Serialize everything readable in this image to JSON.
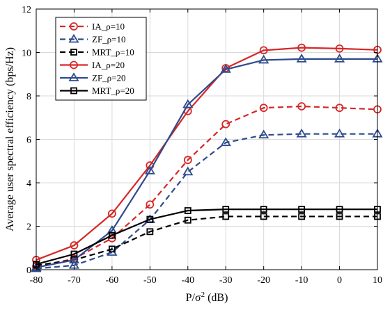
{
  "chart_data": {
    "type": "line",
    "xlabel": "P/σ² (dB)",
    "xlabel_base": "P/σ",
    "xlabel_sup": "2",
    "xlabel_tail": " (dB)",
    "ylabel": "Average user spectral efficiency (bps/Hz)",
    "x": [
      -80,
      -70,
      -60,
      -50,
      -40,
      -30,
      -20,
      -10,
      0,
      10
    ],
    "xlim": [
      -80,
      10
    ],
    "ylim": [
      0,
      12
    ],
    "x_ticks": [
      "-80",
      "-70",
      "-60",
      "-50",
      "-40",
      "-30",
      "-20",
      "-10",
      "0",
      "10"
    ],
    "y_ticks": [
      "0",
      "2",
      "4",
      "6",
      "8",
      "10",
      "12"
    ],
    "grid": true,
    "legend_position": "top-left",
    "series": [
      {
        "name": "IA_ρ=10",
        "color": "#d62728",
        "dash": "dashed",
        "marker": "circle",
        "values": [
          0.15,
          0.5,
          1.45,
          3.0,
          5.05,
          6.7,
          7.45,
          7.52,
          7.45,
          7.38
        ]
      },
      {
        "name": "ZF_ρ=10",
        "color": "#2e4b8e",
        "dash": "dashed",
        "marker": "triangle",
        "values": [
          0.05,
          0.2,
          0.8,
          2.3,
          4.5,
          5.85,
          6.2,
          6.25,
          6.25,
          6.25
        ]
      },
      {
        "name": "MRT_ρ=10",
        "color": "#000000",
        "dash": "dashed",
        "marker": "square",
        "values": [
          0.2,
          0.45,
          0.95,
          1.75,
          2.28,
          2.45,
          2.45,
          2.45,
          2.45,
          2.45
        ]
      },
      {
        "name": "IA_ρ=20",
        "color": "#d62728",
        "dash": "solid",
        "marker": "circle",
        "values": [
          0.45,
          1.12,
          2.58,
          4.8,
          7.3,
          9.28,
          10.1,
          10.22,
          10.18,
          10.12
        ]
      },
      {
        "name": "ZF_ρ=20",
        "color": "#2e4b8e",
        "dash": "solid",
        "marker": "triangle",
        "values": [
          0.1,
          0.45,
          1.8,
          4.55,
          7.6,
          9.22,
          9.65,
          9.7,
          9.7,
          9.7
        ]
      },
      {
        "name": "MRT_ρ=20",
        "color": "#000000",
        "dash": "solid",
        "marker": "square",
        "values": [
          0.25,
          0.72,
          1.58,
          2.32,
          2.72,
          2.78,
          2.78,
          2.78,
          2.78,
          2.78
        ]
      }
    ]
  }
}
